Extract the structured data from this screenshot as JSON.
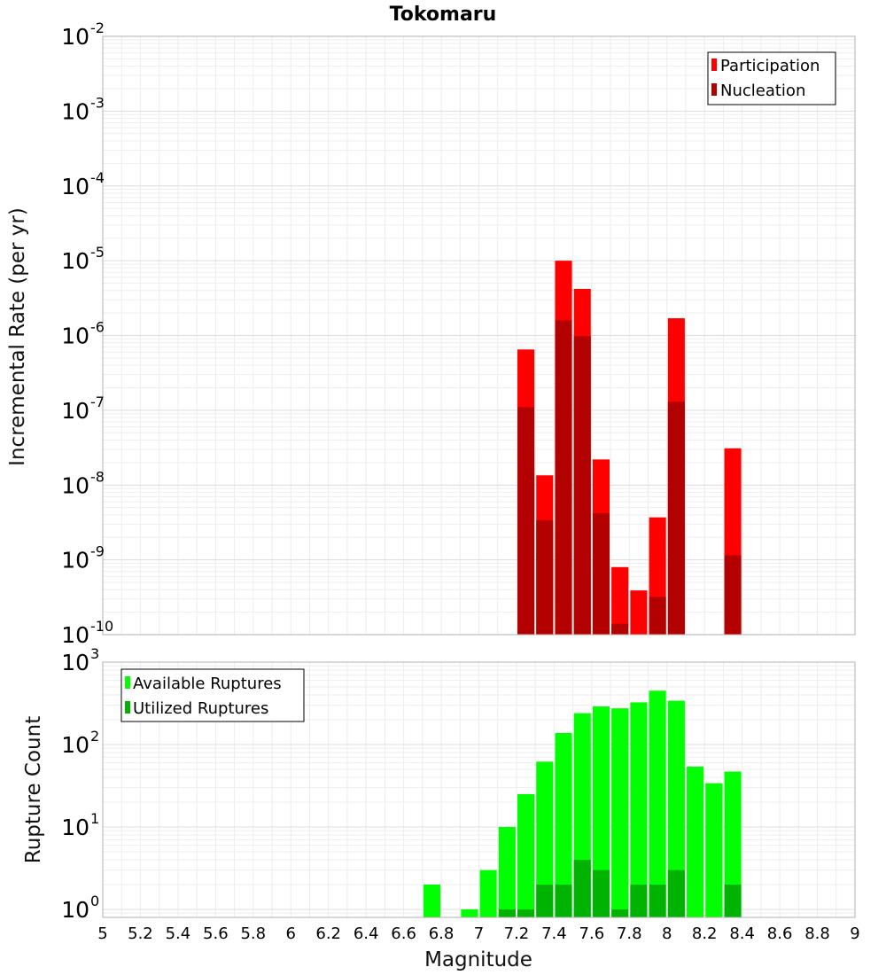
{
  "title": "Tokomaru",
  "chart_data": [
    {
      "type": "bar",
      "ylabel": "Incremental Rate (per yr)",
      "y_scale": "log",
      "ylim": [
        1e-10,
        0.01
      ],
      "xlim": [
        5,
        9
      ],
      "grid": true,
      "legend_position": "top-right",
      "y_ticks": [
        {
          "base": "10",
          "exp": "-10"
        },
        {
          "base": "10",
          "exp": "-9"
        },
        {
          "base": "10",
          "exp": "-8"
        },
        {
          "base": "10",
          "exp": "-7"
        },
        {
          "base": "10",
          "exp": "-6"
        },
        {
          "base": "10",
          "exp": "-5"
        },
        {
          "base": "10",
          "exp": "-4"
        },
        {
          "base": "10",
          "exp": "-3"
        },
        {
          "base": "10",
          "exp": "-2"
        }
      ],
      "x": [
        7.25,
        7.35,
        7.45,
        7.55,
        7.65,
        7.75,
        7.85,
        7.95,
        8.05,
        8.35
      ],
      "series": [
        {
          "name": "Participation",
          "color": "#ff0000",
          "values": [
            6.5e-07,
            1.35e-08,
            1e-05,
            4.2e-06,
            2.2e-08,
            8e-10,
            3.9e-10,
            3.7e-09,
            1.7e-06,
            3.1e-08
          ]
        },
        {
          "name": "Nucleation",
          "color": "#b30000",
          "values": [
            1.1e-07,
            3.4e-09,
            1.6e-06,
            9.8e-07,
            4.2e-09,
            1.4e-10,
            null,
            3.2e-10,
            1.3e-07,
            1.15e-09
          ]
        }
      ]
    },
    {
      "type": "bar",
      "ylabel": "Rupture Count",
      "xlabel": "Magnitude",
      "y_scale": "log",
      "ylim": [
        0.8,
        1000
      ],
      "xlim": [
        5,
        9
      ],
      "grid": true,
      "legend_position": "top-left",
      "y_ticks": [
        {
          "base": "10",
          "exp": "0",
          "value": 1
        },
        {
          "base": "10",
          "exp": "1",
          "value": 10
        },
        {
          "base": "10",
          "exp": "2",
          "value": 100
        },
        {
          "base": "10",
          "exp": "3",
          "value": 1000
        }
      ],
      "x_ticks": [
        "5",
        "5.2",
        "5.4",
        "5.6",
        "5.8",
        "6",
        "6.2",
        "6.4",
        "6.6",
        "6.8",
        "7",
        "7.2",
        "7.4",
        "7.6",
        "7.8",
        "8",
        "8.2",
        "8.4",
        "8.6",
        "8.8",
        "9"
      ],
      "x": [
        6.75,
        6.95,
        7.05,
        7.15,
        7.25,
        7.35,
        7.45,
        7.55,
        7.65,
        7.75,
        7.85,
        7.95,
        8.05,
        8.15,
        8.25,
        8.35
      ],
      "series": [
        {
          "name": "Available Ruptures",
          "color": "#00ff00",
          "values": [
            2,
            1,
            3,
            10,
            25,
            62,
            138,
            240,
            290,
            275,
            325,
            450,
            340,
            54,
            34,
            47
          ]
        },
        {
          "name": "Utilized Ruptures",
          "color": "#00b300",
          "values": [
            null,
            null,
            null,
            1,
            1,
            2,
            2,
            4,
            3,
            1,
            2,
            2,
            3,
            null,
            null,
            2
          ]
        }
      ]
    }
  ]
}
